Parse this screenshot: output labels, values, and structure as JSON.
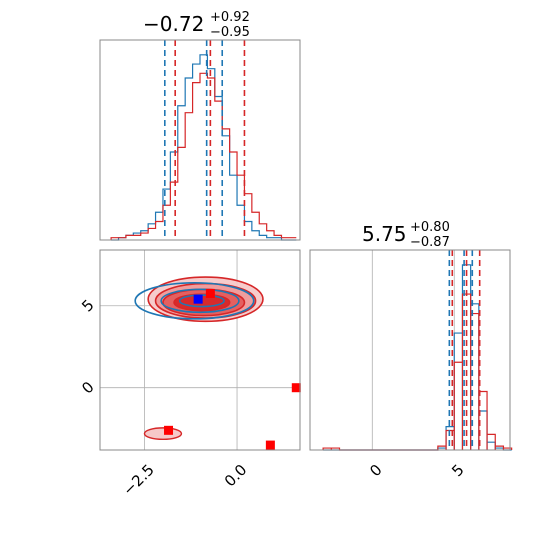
{
  "chart_data": {
    "type": "corner",
    "colors": {
      "series_a": "#d62728",
      "series_b": "#1f77b4",
      "marker_a": "#ff0000",
      "marker_b": "#0000ff"
    },
    "series": [
      {
        "color": "#d62728"
      },
      {
        "color": "#1f77b4"
      }
    ],
    "parameters": [
      {
        "id": "p1",
        "xlim": [
          -3.7,
          1.7
        ],
        "ticks": [
          -2.5,
          0.0
        ],
        "tick_labels": [
          "−2.5",
          "0.0"
        ]
      },
      {
        "id": "p2",
        "ylim": [
          -3.8,
          8.4
        ],
        "xlim": [
          -3.8,
          8.4
        ],
        "ticks": [
          0,
          5
        ],
        "tick_labels": [
          "0",
          "5"
        ]
      }
    ],
    "titles": [
      {
        "value": "−0.72",
        "plus": "+0.92",
        "minus": "−0.95"
      },
      {
        "value": "5.75",
        "plus": "+0.80",
        "minus": "−0.87"
      }
    ],
    "hist_1d": [
      {
        "param": "p1",
        "bins": [
          -3.4,
          -3.2,
          -3.0,
          -2.8,
          -2.6,
          -2.4,
          -2.2,
          -2.0,
          -1.8,
          -1.6,
          -1.4,
          -1.2,
          -1.0,
          -0.8,
          -0.6,
          -0.4,
          -0.2,
          0.0,
          0.2,
          0.4,
          0.6,
          0.8,
          1.0,
          1.2,
          1.4
        ],
        "series_a_counts": [
          1,
          1,
          2,
          2,
          3,
          5,
          8,
          15,
          25,
          40,
          55,
          68,
          72,
          70,
          60,
          48,
          38,
          28,
          20,
          12,
          7,
          4,
          2,
          1,
          1
        ],
        "series_b_counts": [
          0,
          1,
          2,
          3,
          4,
          7,
          12,
          22,
          38,
          58,
          70,
          76,
          80,
          74,
          62,
          45,
          28,
          15,
          8,
          4,
          2,
          1,
          1,
          0,
          0
        ],
        "quantiles_a": [
          -1.67,
          -0.72,
          0.2
        ],
        "quantiles_b": [
          -1.95,
          -0.82,
          -0.4
        ]
      },
      {
        "param": "p2",
        "bins": [
          -3.0,
          -2.5,
          -2.0,
          -1.5,
          -1.0,
          3.5,
          4.0,
          4.5,
          5.0,
          5.5,
          6.0,
          6.5,
          7.0,
          7.5,
          8.0
        ],
        "series_a_counts": [
          1,
          1,
          0,
          0,
          0,
          0,
          2,
          10,
          45,
          80,
          70,
          30,
          8,
          2,
          1
        ],
        "series_b_counts": [
          0,
          0,
          0,
          0,
          0,
          0,
          1,
          12,
          60,
          95,
          75,
          20,
          4,
          1,
          0
        ],
        "quantiles_a": [
          4.88,
          5.75,
          6.55
        ],
        "quantiles_b": [
          4.7,
          5.6,
          6.1
        ]
      }
    ],
    "joint": {
      "x_param": "p1",
      "y_param": "p2",
      "reference_lines": {
        "x": -0.72,
        "y": 5.0
      },
      "markers": [
        {
          "x": -0.72,
          "y": 5.75,
          "color": "#ff0000"
        },
        {
          "x": -1.05,
          "y": 5.4,
          "color": "#0000ff"
        },
        {
          "x": -1.85,
          "y": -2.6,
          "color": "#ff0000"
        },
        {
          "x": 0.9,
          "y": -3.5,
          "color": "#ff0000"
        },
        {
          "x": 1.6,
          "y": 0.0,
          "color": "#ff0000"
        }
      ],
      "contours_a": [
        {
          "level": 1,
          "cx": -0.85,
          "cy": 5.4,
          "rx": 1.55,
          "ry": 1.35
        },
        {
          "level": 2,
          "cx": -0.85,
          "cy": 5.3,
          "rx": 1.35,
          "ry": 1.05
        },
        {
          "level": 3,
          "cx": -0.9,
          "cy": 5.2,
          "rx": 1.1,
          "ry": 0.8
        },
        {
          "level": 4,
          "cx": -0.95,
          "cy": 5.2,
          "rx": 0.75,
          "ry": 0.5
        }
      ],
      "contours_b": [
        {
          "cx": -1.15,
          "cy": 5.3,
          "rx": 1.6,
          "ry": 1.1
        },
        {
          "cx": -1.0,
          "cy": 5.3,
          "rx": 1.05,
          "ry": 0.7
        },
        {
          "cx": -0.95,
          "cy": 5.3,
          "rx": 0.6,
          "ry": 0.35
        }
      ],
      "outlier_blob": {
        "cx": -2.0,
        "cy": -2.8,
        "rx": 0.5,
        "ry": 0.35
      }
    }
  }
}
